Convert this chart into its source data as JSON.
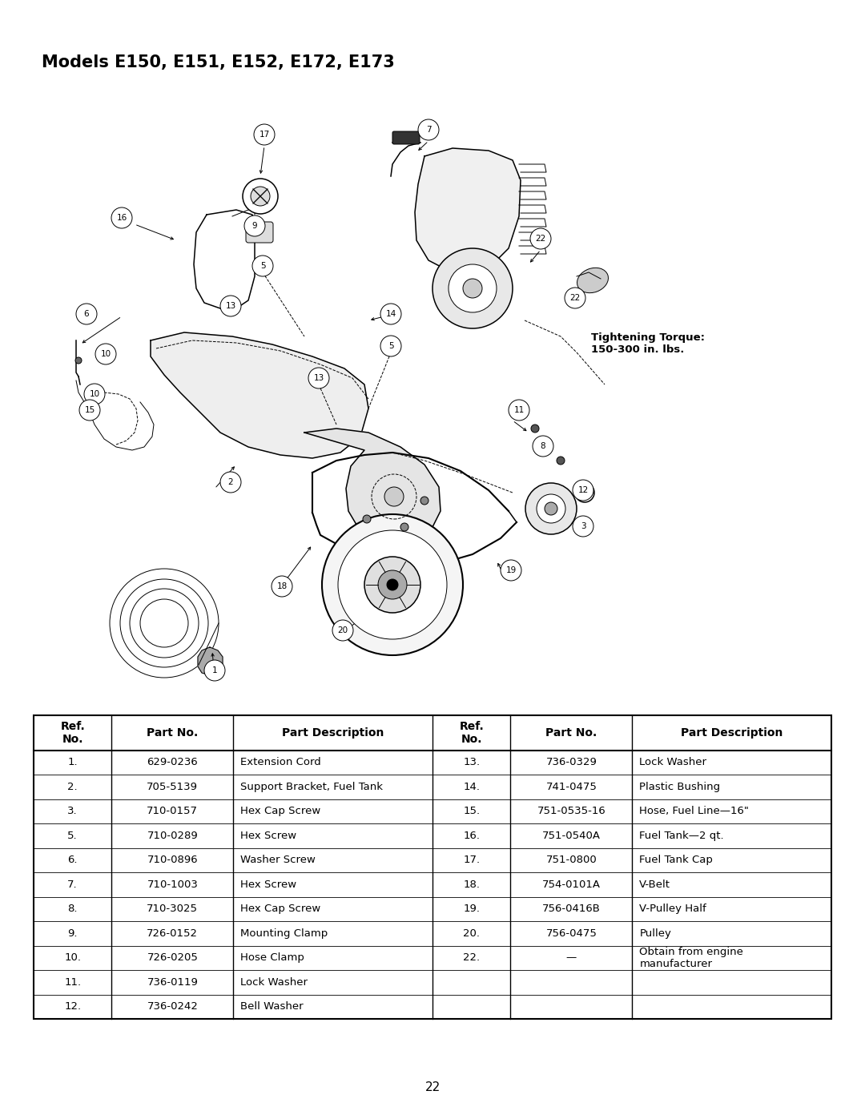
{
  "title": "Models E150, E151, E152, E172, E173",
  "page_number": "22",
  "background_color": "#ffffff",
  "title_fontsize": 15,
  "torque_note": "Tightening Torque:\n150-300 in. lbs.",
  "table_headers": [
    "Ref.\nNo.",
    "Part No.",
    "Part Description",
    "Ref.\nNo.",
    "Part No.",
    "Part Description"
  ],
  "table_rows": [
    [
      "1.",
      "629-0236",
      "Extension Cord",
      "13.",
      "736-0329",
      "Lock Washer"
    ],
    [
      "2.",
      "705-5139",
      "Support Bracket, Fuel Tank",
      "14.",
      "741-0475",
      "Plastic Bushing"
    ],
    [
      "3.",
      "710-0157",
      "Hex Cap Screw",
      "15.",
      "751-0535-16",
      "Hose, Fuel Line—16\""
    ],
    [
      "5.",
      "710-0289",
      "Hex Screw",
      "16.",
      "751-0540A",
      "Fuel Tank—2 qt."
    ],
    [
      "6.",
      "710-0896",
      "Washer Screw",
      "17.",
      "751-0800",
      "Fuel Tank Cap"
    ],
    [
      "7.",
      "710-1003",
      "Hex Screw",
      "18.",
      "754-0101A",
      "V-Belt"
    ],
    [
      "8.",
      "710-3025",
      "Hex Cap Screw",
      "19.",
      "756-0416B",
      "V-Pulley Half"
    ],
    [
      "9.",
      "726-0152",
      "Mounting Clamp",
      "20.",
      "756-0475",
      "Pulley"
    ],
    [
      "10.",
      "726-0205",
      "Hose Clamp",
      "22.",
      "—",
      "Obtain from engine\nmanufacturer"
    ],
    [
      "11.",
      "736-0119",
      "Lock Washer",
      "",
      "",
      ""
    ],
    [
      "12.",
      "736-0242",
      "Bell Washer",
      "",
      "",
      ""
    ]
  ],
  "text_color": "#000000",
  "header_fontsize": 10,
  "cell_fontsize": 9.5,
  "callouts": [
    [
      "17",
      330,
      168
    ],
    [
      "7",
      535,
      162
    ],
    [
      "16",
      152,
      272
    ],
    [
      "9",
      318,
      282
    ],
    [
      "22",
      675,
      298
    ],
    [
      "22",
      718,
      372
    ],
    [
      "5",
      328,
      332
    ],
    [
      "6",
      108,
      392
    ],
    [
      "13",
      288,
      382
    ],
    [
      "14",
      488,
      392
    ],
    [
      "5",
      488,
      432
    ],
    [
      "10",
      132,
      442
    ],
    [
      "10",
      118,
      492
    ],
    [
      "15",
      112,
      512
    ],
    [
      "13",
      398,
      472
    ],
    [
      "2",
      288,
      602
    ],
    [
      "11",
      648,
      512
    ],
    [
      "8",
      678,
      557
    ],
    [
      "12",
      728,
      612
    ],
    [
      "3",
      728,
      657
    ],
    [
      "18",
      352,
      732
    ],
    [
      "19",
      638,
      712
    ],
    [
      "20",
      428,
      787
    ],
    [
      "1",
      268,
      837
    ]
  ]
}
